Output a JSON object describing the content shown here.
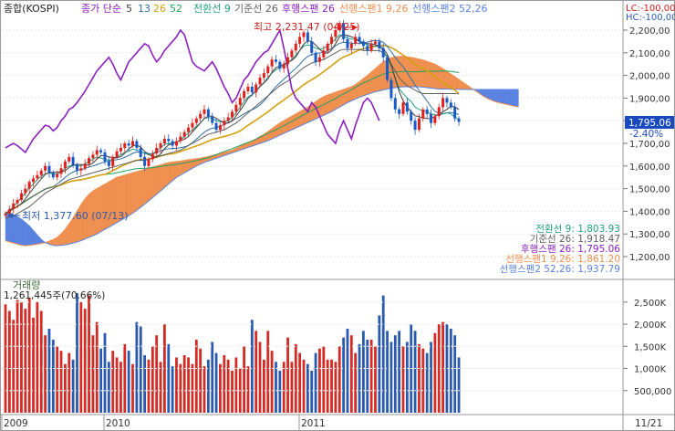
{
  "legend": {
    "market": "종합(KOSPI)",
    "price_label": "종가 단순",
    "ma5": "5",
    "ma13": "13",
    "ma26": "26",
    "ma52": "52",
    "tenkan": "전환선 9",
    "kijun": "기준선 26",
    "chikou": "후행스팬 26",
    "span1": "선행스팬1 9,26",
    "span2": "선행스팬2 52,26",
    "lc": "LC:-100,00",
    "hc": "HC:-100,00"
  },
  "colors": {
    "up": "#e0201c",
    "down": "#1a5ac8",
    "ma5": "#404040",
    "ma13": "#3070a0",
    "ma26": "#d4a010",
    "ma52": "#20a060",
    "tenkan": "#20a080",
    "kijun": "#606060",
    "chikou": "#8a20c0",
    "span1": "#f09050",
    "span2": "#5a82e0",
    "volume_up": "#d42b24",
    "volume_down": "#2a5ab0"
  },
  "annotations": {
    "high": "최고 2,231.47 (04/25)",
    "low": "최저 1,377.60 (07/13)",
    "last_price": "1,795.06",
    "change": "-2.40%"
  },
  "values_panel": [
    {
      "label": "전환선 9: 1,803.93",
      "color": "#20a080"
    },
    {
      "label": "기준선 26: 1,918.47",
      "color": "#606060"
    },
    {
      "label": "후행스팬 26: 1,795.06",
      "color": "#8a20c0"
    },
    {
      "label": "선행스팬1 9,26: 1,861.20",
      "color": "#f09050"
    },
    {
      "label": "선행스팬2 52,26: 1,937.79",
      "color": "#5a82e0"
    }
  ],
  "volume_panel": {
    "title": "거래량",
    "info": "1,261,445주(70.66%)"
  },
  "chart_data": {
    "type": "candlestick",
    "price_axis": {
      "ylim": [
        1130,
        2260
      ],
      "ticks": [
        "2,200,00",
        "2,100,00",
        "2,000,00",
        "1,900,00",
        "1,800,00",
        "1,700,00",
        "1,600,00",
        "1,500,00",
        "1,400,00",
        "1,300,00",
        "1,200,00"
      ]
    },
    "volume_axis": {
      "ylim": [
        0,
        2800
      ],
      "ticks": [
        "2,500K",
        "2,000K",
        "1,500K",
        "1,000K",
        "500,000"
      ]
    },
    "time_axis": [
      "2009",
      "2010",
      "2011",
      "11/21"
    ],
    "close": [
      1390,
      1410,
      1435,
      1450,
      1480,
      1500,
      1530,
      1545,
      1560,
      1580,
      1600,
      1570,
      1550,
      1565,
      1590,
      1620,
      1640,
      1605,
      1580,
      1590,
      1610,
      1635,
      1650,
      1670,
      1660,
      1620,
      1600,
      1640,
      1665,
      1680,
      1700,
      1690,
      1710,
      1680,
      1640,
      1600,
      1630,
      1655,
      1680,
      1700,
      1720,
      1710,
      1690,
      1710,
      1730,
      1750,
      1770,
      1790,
      1810,
      1830,
      1850,
      1820,
      1790,
      1760,
      1780,
      1800,
      1815,
      1840,
      1870,
      1900,
      1930,
      1950,
      1925,
      1960,
      1990,
      2010,
      2040,
      2070,
      2060,
      2030,
      2050,
      2080,
      2110,
      2140,
      2170,
      2190,
      2150,
      2100,
      2060,
      2080,
      2110,
      2140,
      2170,
      2200,
      2231,
      2160,
      2120,
      2140,
      2170,
      2150,
      2130,
      2110,
      2140,
      2150,
      2120,
      2080,
      1980,
      1900,
      1850,
      1830,
      1880,
      1840,
      1800,
      1760,
      1810,
      1850,
      1830,
      1790,
      1820,
      1860,
      1900,
      1880,
      1860,
      1810,
      1795
    ],
    "volume": [
      2450,
      2300,
      2100,
      2550,
      2500,
      2350,
      2600,
      2150,
      2500,
      2300,
      1750,
      1900,
      1650,
      1500,
      1400,
      1100,
      1350,
      1200,
      2700,
      2500,
      2350,
      2650,
      1750,
      2050,
      1450,
      1800,
      1150,
      1400,
      1250,
      1150,
      1550,
      1400,
      1100,
      2050,
      1950,
      1300,
      1200,
      1500,
      1750,
      1150,
      2000,
      1550,
      1050,
      1250,
      1100,
      1300,
      1250,
      1100,
      1650,
      1450,
      1050,
      1200,
      1600,
      1350,
      1100,
      1300,
      1200,
      950,
      1250,
      1000,
      1500,
      1050,
      2100,
      1850,
      1600,
      1200,
      1850,
      1400,
      1150,
      950,
      1150,
      1700,
      1150,
      1550,
      1350,
      1200,
      1100,
      950,
      1350,
      1450,
      1500,
      1200,
      1200,
      1150,
      1500,
      1700,
      1900,
      1750,
      1350,
      1550,
      1850,
      1650,
      1650,
      1500,
      2200,
      2650,
      1850,
      1600,
      1750,
      1850,
      1500,
      1600,
      2000,
      1850,
      1550,
      1450,
      1350,
      1600,
      1800,
      2000,
      2050,
      2000,
      1900,
      1750,
      1250
    ],
    "tenkan": [
      1390,
      1405,
      1420,
      1440,
      1460,
      1480,
      1505,
      1520,
      1540,
      1555,
      1565,
      1570,
      1565,
      1565,
      1575,
      1590,
      1600,
      1605,
      1600,
      1600,
      1610,
      1620,
      1630,
      1640,
      1635,
      1630,
      1625,
      1630,
      1640,
      1650,
      1660,
      1665,
      1675,
      1670,
      1665,
      1655,
      1650,
      1655,
      1665,
      1680,
      1695,
      1700,
      1700,
      1705,
      1715,
      1730,
      1745,
      1760,
      1775,
      1790,
      1810,
      1815,
      1810,
      1800,
      1795,
      1795,
      1800,
      1815,
      1835,
      1860,
      1885,
      1905,
      1915,
      1930,
      1950,
      1970,
      1990,
      2010,
      2025,
      2035,
      2045,
      2055,
      2070,
      2090,
      2110,
      2130,
      2135,
      2130,
      2120,
      2115,
      2120,
      2130,
      2145,
      2160,
      2180,
      2175,
      2165,
      2160,
      2160,
      2155,
      2145,
      2135,
      2130,
      2130,
      2125,
      2110,
      2080,
      2040,
      1990,
      1940,
      1920,
      1900,
      1885,
      1860,
      1850,
      1845,
      1840,
      1830,
      1825,
      1825,
      1830,
      1835,
      1830,
      1815,
      1804
    ],
    "kijun": [
      1370,
      1375,
      1380,
      1390,
      1400,
      1410,
      1420,
      1435,
      1450,
      1465,
      1480,
      1490,
      1500,
      1510,
      1520,
      1530,
      1540,
      1545,
      1550,
      1555,
      1560,
      1565,
      1570,
      1575,
      1580,
      1585,
      1590,
      1595,
      1600,
      1605,
      1610,
      1615,
      1620,
      1625,
      1625,
      1625,
      1630,
      1635,
      1640,
      1645,
      1650,
      1655,
      1660,
      1665,
      1670,
      1680,
      1690,
      1700,
      1710,
      1720,
      1730,
      1740,
      1745,
      1750,
      1755,
      1760,
      1770,
      1780,
      1790,
      1805,
      1820,
      1835,
      1850,
      1865,
      1880,
      1895,
      1910,
      1925,
      1940,
      1955,
      1965,
      1975,
      1990,
      2005,
      2020,
      2035,
      2045,
      2055,
      2060,
      2065,
      2070,
      2080,
      2090,
      2100,
      2110,
      2115,
      2115,
      2115,
      2115,
      2115,
      2110,
      2110,
      2110,
      2110,
      2110,
      2100,
      2080,
      2050,
      2020,
      1990,
      1970,
      1955,
      1945,
      1935,
      1925,
      1920,
      1920,
      1920,
      1920,
      1920,
      1920,
      1920,
      1920,
      1920,
      1918
    ],
    "chikou": [
      1680,
      1690,
      1700,
      1690,
      1675,
      1660,
      1690,
      1720,
      1740,
      1760,
      1780,
      1775,
      1755,
      1770,
      1800,
      1820,
      1850,
      1860,
      1880,
      1905,
      1930,
      1960,
      1990,
      2020,
      2040,
      2060,
      2080,
      2050,
      2010,
      1980,
      2020,
      2060,
      2080,
      2100,
      2120,
      2140,
      2130,
      2090,
      2060,
      2080,
      2110,
      2130,
      2150,
      2170,
      2200,
      2180,
      2120,
      2060,
      2040,
      2030,
      2020,
      2040,
      2060,
      2030,
      1990,
      1950,
      1920,
      1880,
      1900,
      1940,
      1980,
      2000,
      2030,
      2060,
      2080,
      2100,
      2110,
      2140,
      2170,
      2200,
      2120,
      2030,
      1940,
      1900,
      1880,
      1860,
      1840,
      1880,
      1860,
      1820,
      1780,
      1740,
      1720,
      1700,
      1760,
      1800,
      1760,
      1720,
      1780,
      1830,
      1880,
      1900,
      1880,
      1840,
      1800
    ],
    "span1": [
      1270,
      1265,
      1260,
      1255,
      1250,
      1248,
      1250,
      1252,
      1255,
      1258,
      1262,
      1268,
      1275,
      1285,
      1300,
      1320,
      1345,
      1370,
      1400,
      1430,
      1455,
      1475,
      1490,
      1500,
      1510,
      1520,
      1530,
      1540,
      1550,
      1555,
      1560,
      1565,
      1570,
      1575,
      1580,
      1585,
      1590,
      1595,
      1600,
      1605,
      1610,
      1615,
      1618,
      1620,
      1622,
      1625,
      1628,
      1630,
      1632,
      1635,
      1638,
      1642,
      1646,
      1650,
      1655,
      1660,
      1665,
      1670,
      1678,
      1686,
      1694,
      1702,
      1710,
      1720,
      1730,
      1740,
      1752,
      1765,
      1778,
      1790,
      1800,
      1810,
      1820,
      1830,
      1840,
      1850,
      1860,
      1872,
      1884,
      1896,
      1906,
      1914,
      1920,
      1926,
      1932,
      1938,
      1944,
      1950,
      1960,
      1972,
      1986,
      2000,
      2015,
      2030,
      2045,
      2060,
      2070,
      2078,
      2082,
      2084,
      2084,
      2082,
      2080,
      2076,
      2072,
      2068,
      2062,
      2056,
      2050,
      2040,
      2030,
      2018,
      2006,
      1994,
      1982,
      1970,
      1958,
      1946,
      1934,
      1922,
      1910,
      1900,
      1892,
      1885,
      1880,
      1876,
      1872,
      1868,
      1864,
      1861
    ],
    "span2": [
      1395,
      1390,
      1385,
      1375,
      1365,
      1350,
      1335,
      1315,
      1295,
      1275,
      1262,
      1255,
      1250,
      1248,
      1250,
      1252,
      1255,
      1260,
      1265,
      1270,
      1278,
      1285,
      1292,
      1300,
      1310,
      1320,
      1330,
      1340,
      1350,
      1360,
      1370,
      1380,
      1392,
      1404,
      1418,
      1432,
      1446,
      1460,
      1475,
      1490,
      1505,
      1520,
      1535,
      1550,
      1560,
      1570,
      1580,
      1590,
      1600,
      1608,
      1616,
      1622,
      1628,
      1634,
      1640,
      1646,
      1652,
      1658,
      1664,
      1670,
      1676,
      1682,
      1688,
      1694,
      1700,
      1706,
      1712,
      1720,
      1728,
      1736,
      1744,
      1752,
      1760,
      1768,
      1776,
      1784,
      1792,
      1800,
      1808,
      1816,
      1824,
      1832,
      1840,
      1850,
      1860,
      1870,
      1880,
      1888,
      1896,
      1904,
      1910,
      1916,
      1922,
      1928,
      1932,
      1936,
      1940,
      1944,
      1946,
      1948,
      1950,
      1950,
      1950,
      1950,
      1950,
      1948,
      1946,
      1944,
      1942,
      1940,
      1940,
      1940,
      1939,
      1939,
      1939,
      1938,
      1938,
      1938,
      1938,
      1938,
      1938,
      1938,
      1938,
      1938,
      1938,
      1938,
      1938,
      1938,
      1938,
      1937.79
    ]
  }
}
